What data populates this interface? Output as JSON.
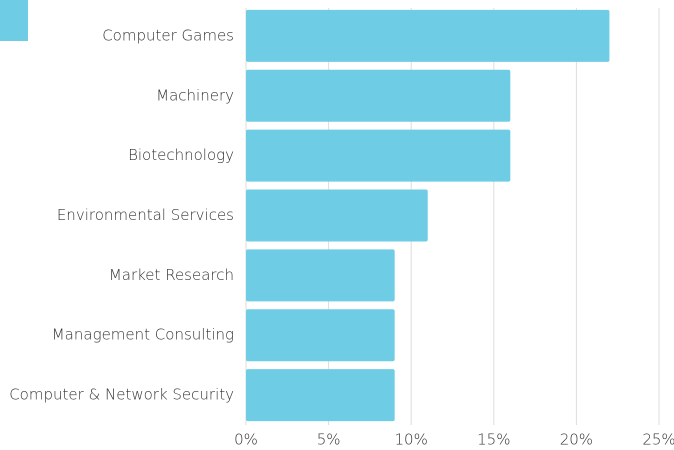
{
  "chart_data": {
    "type": "bar",
    "orientation": "horizontal",
    "categories": [
      "Computer Games",
      "Machinery",
      "Biotechnology",
      "Environmental Services",
      "Market Research",
      "Management Consulting",
      "Computer & Network Security"
    ],
    "values": [
      22,
      16,
      16,
      11,
      9,
      9,
      9
    ],
    "color": "#6ecde5",
    "xlim": [
      0,
      25
    ],
    "xticks": [
      {
        "value": 0,
        "label": "0%"
      },
      {
        "value": 5,
        "label": "5%"
      },
      {
        "value": 10,
        "label": "10%"
      },
      {
        "value": 15,
        "label": "15%"
      },
      {
        "value": 20,
        "label": "20%"
      },
      {
        "value": 25,
        "label": "25%"
      }
    ],
    "grid": true
  }
}
